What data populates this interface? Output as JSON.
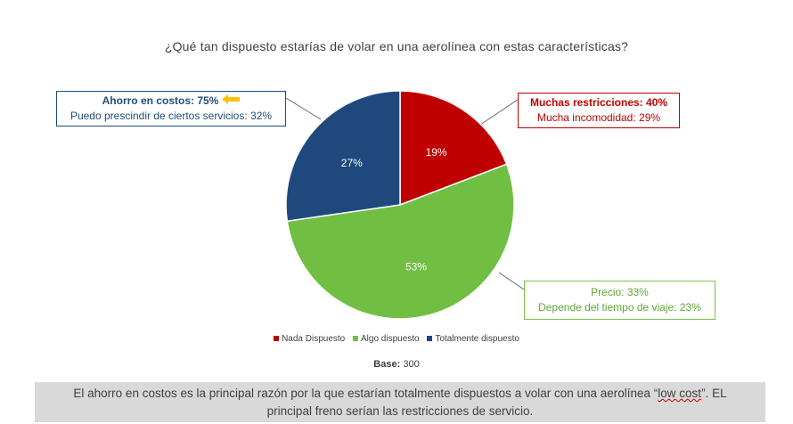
{
  "title": "¿Qué tan dispuesto estarías de volar en una aerolínea con estas características?",
  "chart_data": {
    "type": "pie",
    "title": "¿Qué tan dispuesto estarías de volar en una aerolínea con estas características?",
    "slices": [
      {
        "name": "Nada Dispuesto",
        "value": 19,
        "label": "19%",
        "color": "#c00000"
      },
      {
        "name": "Algo dispuesto",
        "value": 53,
        "label": "53%",
        "color": "#70bf43"
      },
      {
        "name": "Totalmente dispuesto",
        "value": 27,
        "label": "27%",
        "color": "#1f497d"
      }
    ],
    "legend_position": "bottom"
  },
  "callouts": {
    "ahorro": {
      "line1": "Ahorro en costos: 75%",
      "line2": "Puedo prescindir de ciertos servicios: 32%",
      "arrow_icon": "arrow-left-icon",
      "arrow_color": "#ffc000"
    },
    "restricciones": {
      "line1": "Muchas restricciones: 40%",
      "line2": "Mucha incomodidad: 29%"
    },
    "precio": {
      "line1": "Precio: 33%",
      "line2": "Depende del tiempo de viaje: 23%"
    }
  },
  "legend": [
    {
      "label": "Nada Dispuesto",
      "color": "#c00000"
    },
    {
      "label": "Algo dispuesto",
      "color": "#70bf43"
    },
    {
      "label": "Totalmente dispuesto",
      "color": "#1f497d"
    }
  ],
  "base": {
    "label": "Base:",
    "value": "300"
  },
  "footer": {
    "text_before": "El ahorro  en costos es la principal razón por la que estarían totalmente  dispuestos a volar con una aerolínea “",
    "highlight": "low cost",
    "text_after": "”. EL principal  freno serían las restricciones de servicio."
  }
}
